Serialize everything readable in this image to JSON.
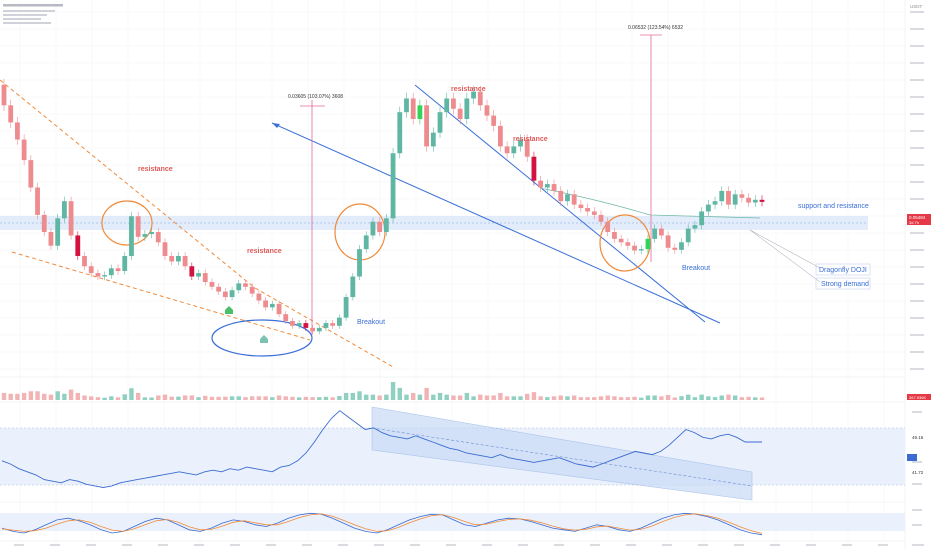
{
  "chart_data": {
    "type": "candlestick",
    "price_candles": [
      {
        "o": 0.072,
        "c": 0.069
      },
      {
        "o": 0.069,
        "c": 0.0665
      },
      {
        "o": 0.0665,
        "c": 0.064
      },
      {
        "o": 0.064,
        "c": 0.061
      },
      {
        "o": 0.061,
        "c": 0.057
      },
      {
        "o": 0.057,
        "c": 0.053
      },
      {
        "o": 0.053,
        "c": 0.0505
      },
      {
        "o": 0.0505,
        "c": 0.0485
      },
      {
        "o": 0.0485,
        "c": 0.0525
      },
      {
        "o": 0.0525,
        "c": 0.055
      },
      {
        "o": 0.055,
        "c": 0.05
      },
      {
        "o": 0.05,
        "c": 0.047
      },
      {
        "o": 0.047,
        "c": 0.0455
      },
      {
        "o": 0.0455,
        "c": 0.0445
      },
      {
        "o": 0.0445,
        "c": 0.044
      },
      {
        "o": 0.044,
        "c": 0.0442
      },
      {
        "o": 0.0442,
        "c": 0.0452
      },
      {
        "o": 0.0452,
        "c": 0.0448
      },
      {
        "o": 0.0448,
        "c": 0.047
      },
      {
        "o": 0.047,
        "c": 0.0528
      },
      {
        "o": 0.0528,
        "c": 0.0498
      },
      {
        "o": 0.0498,
        "c": 0.0502
      },
      {
        "o": 0.0502,
        "c": 0.0505
      },
      {
        "o": 0.0505,
        "c": 0.049
      },
      {
        "o": 0.049,
        "c": 0.047
      },
      {
        "o": 0.047,
        "c": 0.0462
      },
      {
        "o": 0.0462,
        "c": 0.047
      },
      {
        "o": 0.047,
        "c": 0.0455
      },
      {
        "o": 0.0455,
        "c": 0.044
      },
      {
        "o": 0.044,
        "c": 0.0445
      },
      {
        "o": 0.0445,
        "c": 0.0432
      },
      {
        "o": 0.0432,
        "c": 0.0425
      },
      {
        "o": 0.0425,
        "c": 0.0418
      },
      {
        "o": 0.0418,
        "c": 0.041
      },
      {
        "o": 0.041,
        "c": 0.042
      },
      {
        "o": 0.042,
        "c": 0.043
      },
      {
        "o": 0.043,
        "c": 0.0425
      },
      {
        "o": 0.0425,
        "c": 0.0415
      },
      {
        "o": 0.0415,
        "c": 0.0405
      },
      {
        "o": 0.0405,
        "c": 0.0395
      },
      {
        "o": 0.0395,
        "c": 0.04
      },
      {
        "o": 0.04,
        "c": 0.0385
      },
      {
        "o": 0.0385,
        "c": 0.0375
      },
      {
        "o": 0.0375,
        "c": 0.0368
      },
      {
        "o": 0.0368,
        "c": 0.0372
      },
      {
        "o": 0.0372,
        "c": 0.0365
      },
      {
        "o": 0.0365,
        "c": 0.036
      },
      {
        "o": 0.036,
        "c": 0.0365
      },
      {
        "o": 0.0365,
        "c": 0.0372
      },
      {
        "o": 0.0372,
        "c": 0.0368
      },
      {
        "o": 0.0368,
        "c": 0.038
      },
      {
        "o": 0.038,
        "c": 0.041
      },
      {
        "o": 0.041,
        "c": 0.044
      },
      {
        "o": 0.044,
        "c": 0.048
      },
      {
        "o": 0.048,
        "c": 0.05
      },
      {
        "o": 0.05,
        "c": 0.052
      },
      {
        "o": 0.052,
        "c": 0.0505
      },
      {
        "o": 0.0505,
        "c": 0.0525
      },
      {
        "o": 0.0525,
        "c": 0.062
      },
      {
        "o": 0.062,
        "c": 0.068
      },
      {
        "o": 0.068,
        "c": 0.07
      },
      {
        "o": 0.07,
        "c": 0.067
      },
      {
        "o": 0.067,
        "c": 0.069
      },
      {
        "o": 0.069,
        "c": 0.063
      },
      {
        "o": 0.063,
        "c": 0.065
      },
      {
        "o": 0.065,
        "c": 0.068
      },
      {
        "o": 0.068,
        "c": 0.07
      },
      {
        "o": 0.07,
        "c": 0.0685
      },
      {
        "o": 0.0685,
        "c": 0.067
      },
      {
        "o": 0.067,
        "c": 0.07
      },
      {
        "o": 0.07,
        "c": 0.071
      },
      {
        "o": 0.071,
        "c": 0.069
      },
      {
        "o": 0.069,
        "c": 0.0675
      },
      {
        "o": 0.0675,
        "c": 0.066
      },
      {
        "o": 0.066,
        "c": 0.063
      },
      {
        "o": 0.063,
        "c": 0.062
      },
      {
        "o": 0.062,
        "c": 0.063
      },
      {
        "o": 0.063,
        "c": 0.064
      },
      {
        "o": 0.064,
        "c": 0.0615
      },
      {
        "o": 0.0615,
        "c": 0.058
      },
      {
        "o": 0.058,
        "c": 0.057
      },
      {
        "o": 0.057,
        "c": 0.0575
      },
      {
        "o": 0.0575,
        "c": 0.0565
      },
      {
        "o": 0.0565,
        "c": 0.055
      },
      {
        "o": 0.055,
        "c": 0.056
      },
      {
        "o": 0.056,
        "c": 0.0545
      },
      {
        "o": 0.0545,
        "c": 0.054
      },
      {
        "o": 0.054,
        "c": 0.0535
      },
      {
        "o": 0.0535,
        "c": 0.053
      },
      {
        "o": 0.053,
        "c": 0.052
      },
      {
        "o": 0.052,
        "c": 0.0505
      },
      {
        "o": 0.0505,
        "c": 0.0495
      },
      {
        "o": 0.0495,
        "c": 0.049
      },
      {
        "o": 0.049,
        "c": 0.0485
      },
      {
        "o": 0.0485,
        "c": 0.0478
      },
      {
        "o": 0.0478,
        "c": 0.048
      },
      {
        "o": 0.048,
        "c": 0.0495
      },
      {
        "o": 0.0495,
        "c": 0.051
      },
      {
        "o": 0.051,
        "c": 0.05
      },
      {
        "o": 0.05,
        "c": 0.0482
      },
      {
        "o": 0.0482,
        "c": 0.0479
      },
      {
        "o": 0.0479,
        "c": 0.049
      },
      {
        "o": 0.049,
        "c": 0.051
      },
      {
        "o": 0.051,
        "c": 0.0515
      },
      {
        "o": 0.0515,
        "c": 0.0535
      },
      {
        "o": 0.0535,
        "c": 0.0545
      },
      {
        "o": 0.0545,
        "c": 0.055
      },
      {
        "o": 0.055,
        "c": 0.0565
      },
      {
        "o": 0.0565,
        "c": 0.0545
      },
      {
        "o": 0.0545,
        "c": 0.056
      },
      {
        "o": 0.056,
        "c": 0.0555
      },
      {
        "o": 0.0555,
        "c": 0.0548
      },
      {
        "o": 0.0548,
        "c": 0.0552
      },
      {
        "o": 0.0552,
        "c": 0.0549
      }
    ],
    "right_axis_unit": "USDT",
    "measurements": [
      {
        "label": "0.03605 (103.07%) 3608"
      },
      {
        "label": "0.06532 (123.54%) 6532"
      }
    ],
    "annotations_red": [
      {
        "text": "resistance"
      },
      {
        "text": "resistance"
      },
      {
        "text": "resistance"
      },
      {
        "text": "resistance"
      }
    ],
    "annotations_blue": [
      {
        "text": "Breakout"
      },
      {
        "text": "Breakout"
      },
      {
        "text": "support and resistance"
      },
      {
        "text": "Dragonfly DOJI"
      },
      {
        "text": "Strong demand"
      }
    ],
    "price_tag": {
      "value": "0.05484",
      "sub": "3d 7h"
    },
    "volume_label": {
      "value": "367.936K"
    },
    "rsi_tags": [
      {
        "value": "49.16"
      },
      {
        "value": "41.72"
      }
    ],
    "rsi_series": [
      40,
      38,
      35,
      33,
      31,
      28,
      27,
      26,
      28,
      27,
      25,
      24,
      23,
      24,
      26,
      27,
      28,
      29,
      30,
      31,
      32,
      33,
      32,
      31,
      33,
      34,
      33,
      35,
      34,
      36,
      35,
      34,
      33,
      36,
      37,
      40,
      45,
      52,
      60,
      67,
      72,
      68,
      64,
      60,
      61,
      58,
      56,
      55,
      54,
      56,
      54,
      52,
      50,
      48,
      47,
      45,
      44,
      43,
      42,
      44,
      42,
      41,
      40,
      39,
      40,
      41,
      42,
      40,
      38,
      37,
      36,
      38,
      40,
      42,
      44,
      46,
      45,
      44,
      46,
      50,
      55,
      60,
      58,
      55,
      54,
      56,
      57,
      55,
      52,
      52,
      52
    ],
    "stoch_k": [
      30,
      20,
      15,
      25,
      40,
      55,
      60,
      52,
      40,
      25,
      15,
      20,
      35,
      50,
      60,
      55,
      40,
      25,
      20,
      30,
      45,
      55,
      50,
      40,
      35,
      45,
      60,
      70,
      75,
      72,
      60,
      45,
      30,
      20,
      15,
      25,
      40,
      55,
      65,
      72,
      70,
      55,
      40,
      35,
      45,
      55,
      60,
      58,
      50,
      40,
      30,
      25,
      20,
      30,
      40,
      35,
      25,
      20,
      30,
      45,
      60,
      70,
      75,
      72,
      65,
      55,
      40,
      25,
      15,
      10
    ],
    "stoch_d": [
      28,
      24,
      20,
      22,
      30,
      42,
      52,
      55,
      48,
      35,
      24,
      20,
      28,
      40,
      52,
      56,
      48,
      34,
      25,
      26,
      36,
      48,
      52,
      46,
      40,
      40,
      50,
      62,
      70,
      73,
      66,
      54,
      40,
      28,
      20,
      22,
      32,
      46,
      58,
      68,
      71,
      62,
      50,
      40,
      42,
      50,
      56,
      58,
      54,
      46,
      36,
      28,
      24,
      26,
      34,
      36,
      30,
      24,
      26,
      36,
      50,
      62,
      70,
      73,
      68,
      60,
      48,
      34,
      22,
      14
    ]
  }
}
